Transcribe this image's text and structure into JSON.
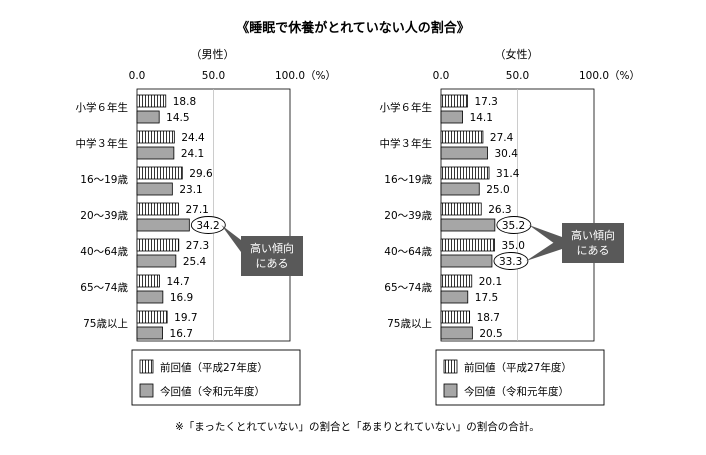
{
  "title": "《睡眠で休養がとれていない人の割合》",
  "footnote": "※「まったくとれていない」の割合と「あまりとれていない」の割合の合計。",
  "colors": {
    "prev_fill": "#ffffff",
    "prev_stripe": "#000000",
    "curr_fill": "#a6a6a6",
    "callout_bg": "#595959",
    "callout_text": "#ffffff",
    "grid": "#bfbfbf"
  },
  "chart_data": [
    {
      "type": "bar",
      "orientation": "horizontal",
      "panel_label": "（男性）",
      "axis_unit": "（%）",
      "xlim": [
        0,
        100
      ],
      "tick_labels": [
        "0.0",
        "50.0",
        "100.0"
      ],
      "categories": [
        "小学６年生",
        "中学３年生",
        "16～19歳",
        "20～39歳",
        "40～64歳",
        "65～74歳",
        "75歳以上"
      ],
      "series": [
        {
          "name": "前回値（平成27年度）",
          "values": [
            18.8,
            24.4,
            29.6,
            27.1,
            27.3,
            14.7,
            19.7
          ],
          "labels": [
            "18.8",
            "24.4",
            "29.6",
            "27.1",
            "27.3",
            "14.7",
            "19.7"
          ]
        },
        {
          "name": "今回値（令和元年度）",
          "values": [
            14.5,
            24.1,
            23.1,
            34.2,
            25.4,
            16.9,
            16.7
          ],
          "labels": [
            "14.5",
            "24.1",
            "23.1",
            "34.2",
            "25.4",
            "16.9",
            "16.7"
          ]
        }
      ],
      "highlighted": [
        {
          "series": 1,
          "index": 3
        }
      ],
      "callout": [
        "高い傾向",
        "にある"
      ],
      "legend_position": "bottom"
    },
    {
      "type": "bar",
      "orientation": "horizontal",
      "panel_label": "（女性）",
      "axis_unit": "（%）",
      "xlim": [
        0,
        100
      ],
      "tick_labels": [
        "0.0",
        "50.0",
        "100.0"
      ],
      "categories": [
        "小学６年生",
        "中学３年生",
        "16～19歳",
        "20～39歳",
        "40～64歳",
        "65～74歳",
        "75歳以上"
      ],
      "series": [
        {
          "name": "前回値（平成27年度）",
          "values": [
            17.3,
            27.4,
            31.4,
            26.3,
            35.0,
            20.1,
            18.7
          ],
          "labels": [
            "17.3",
            "27.4",
            "31.4",
            "26.3",
            "35.0",
            "20.1",
            "18.7"
          ]
        },
        {
          "name": "今回値（令和元年度）",
          "values": [
            14.1,
            30.4,
            25.0,
            35.2,
            33.3,
            17.5,
            20.5
          ],
          "labels": [
            "14.1",
            "30.4",
            "25.0",
            "35.2",
            "33.3",
            "17.5",
            "20.5"
          ]
        }
      ],
      "highlighted": [
        {
          "series": 1,
          "index": 3
        },
        {
          "series": 1,
          "index": 4
        }
      ],
      "callout": [
        "高い傾向",
        "にある"
      ],
      "legend_position": "bottom"
    }
  ]
}
